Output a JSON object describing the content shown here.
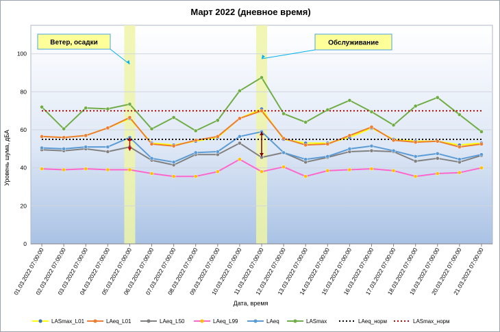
{
  "chart_data": {
    "type": "line",
    "title": "Март 2022 (дневное время)",
    "xlabel": "Дата, время",
    "ylabel": "Уровень шума, дБА",
    "ylim": [
      0,
      115
    ],
    "yticks": [
      0,
      20,
      40,
      60,
      80,
      100
    ],
    "grid": true,
    "legend_position": "bottom",
    "categories": [
      "01.03.2022 07:00:00",
      "02.03.2022 07:00:00",
      "03.03.2022 07:00:00",
      "04.03.2022 07:00:00",
      "05.03.2022 07:00:00",
      "06.03.2022 07:00:00",
      "07.03.2022 07:00:00",
      "08.03.2022 07:00:00",
      "09.03.2022 07:00:00",
      "10.03.2022 07:00:00",
      "11.03.2022 07:00:00",
      "12.03.2022 07:00:00",
      "13.03.2022 07:00:00",
      "14.03.2022 07:00:00",
      "15.03.2022 07:00:00",
      "16.03.2022 07:00:00",
      "17.03.2022 07:00:00",
      "18.03.2022 07:00:00",
      "19.03.2022 07:00:00",
      "20.03.2022 07:00:00",
      "21.03.2022 07:00:00"
    ],
    "series": [
      {
        "name": "LASmax_L01",
        "color": "#ffff00",
        "marker": "#4472c4",
        "dash": "",
        "values": [
          56.5,
          56,
          57,
          61,
          66,
          53,
          52,
          54,
          56,
          66,
          71,
          55,
          53,
          53,
          56,
          61,
          55,
          54,
          54,
          52,
          53
        ]
      },
      {
        "name": "LAeq_L01",
        "color": "#ed7d31",
        "marker": "#ed7d31",
        "dash": "",
        "values": [
          56.5,
          56,
          57,
          61,
          66.5,
          52.5,
          51.5,
          54.5,
          56.5,
          66,
          70,
          55.5,
          52,
          52.5,
          57,
          61.5,
          54.5,
          53.5,
          54,
          51,
          52.5
        ]
      },
      {
        "name": "LAeq_L50",
        "color": "#808080",
        "marker": "#808080",
        "dash": "",
        "values": [
          49.5,
          49,
          50,
          48.5,
          51,
          44,
          41.5,
          47,
          47,
          53,
          45.5,
          48,
          43,
          45.5,
          48.5,
          49,
          48.5,
          43.5,
          45,
          43,
          46.5
        ]
      },
      {
        "name": "LAeq_L99",
        "color": "#ff66cc",
        "marker": "#ffc000",
        "dash": "",
        "values": [
          39.5,
          39,
          39.5,
          39,
          39,
          37,
          35.5,
          35.5,
          38,
          44.5,
          38,
          40.5,
          35.5,
          38.5,
          39,
          39.5,
          38.5,
          35.5,
          37,
          37.5,
          40
        ]
      },
      {
        "name": "LAeq",
        "color": "#5b9bd5",
        "marker": "#5b9bd5",
        "dash": "",
        "values": [
          50.5,
          50,
          51,
          51,
          56,
          45,
          43,
          48,
          48.5,
          56.5,
          59,
          48,
          44.5,
          46,
          50,
          51.5,
          49,
          46,
          47.5,
          44.5,
          47
        ]
      },
      {
        "name": "LASmax",
        "color": "#70ad47",
        "marker": "#70ad47",
        "dash": "",
        "values": [
          72,
          60.5,
          71.5,
          71,
          73.5,
          60.5,
          66.5,
          59.5,
          65,
          80.5,
          87.5,
          68.5,
          64,
          70.5,
          75.5,
          69.5,
          62.5,
          72.5,
          77,
          68,
          59
        ]
      },
      {
        "name": "LAeq_норм",
        "color": "#000000",
        "marker": "",
        "dash": "2,3",
        "values": [
          55,
          55,
          55,
          55,
          55,
          55,
          55,
          55,
          55,
          55,
          55,
          55,
          55,
          55,
          55,
          55,
          55,
          55,
          55,
          55,
          55
        ]
      },
      {
        "name": "LASmax_норм",
        "color": "#c00000",
        "marker": "",
        "dash": "2,3",
        "values": [
          70,
          70,
          70,
          70,
          70,
          70,
          70,
          70,
          70,
          70,
          70,
          70,
          70,
          70,
          70,
          70,
          70,
          70,
          70,
          70,
          70
        ]
      }
    ],
    "highlights": [
      {
        "category_index": 4,
        "color": "#eef5a8"
      },
      {
        "category_index": 10,
        "color": "#eef5a8"
      }
    ],
    "annotations": [
      {
        "text": "Ветер, осадки",
        "category_index": 4
      },
      {
        "text": "Обслуживание",
        "category_index": 10
      }
    ],
    "arrows": [
      {
        "category_index": 4,
        "from": 56,
        "to": 49,
        "color": "#c00000"
      },
      {
        "category_index": 10,
        "from": 59,
        "to": 46,
        "color": "#800000"
      }
    ]
  }
}
